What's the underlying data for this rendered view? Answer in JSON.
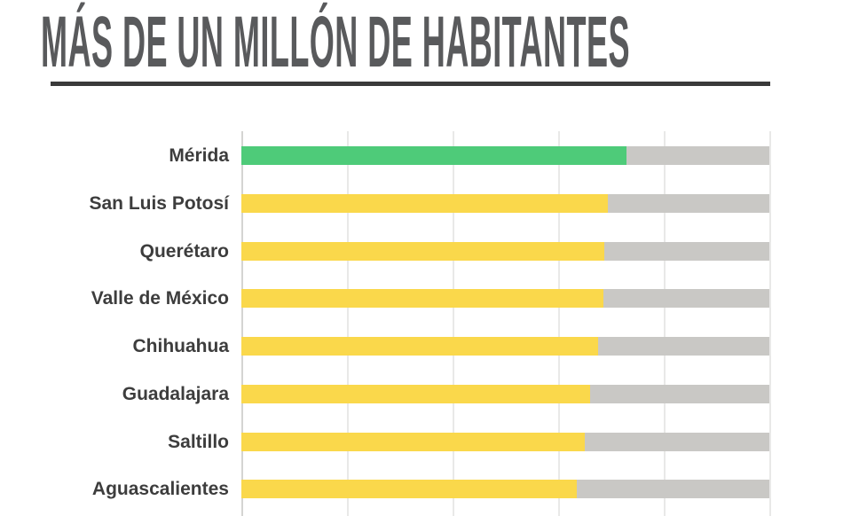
{
  "title": "MÁS DE UN MILLÓN DE HABITANTES",
  "colors": {
    "highlight_bar": "#4ecb79",
    "default_bar": "#fad84b",
    "track": "#c9c8c5",
    "gridline": "#e9e9e8",
    "axis_line": "#d4d4d2",
    "title_text": "#595a5c",
    "label_text": "#3d3d3d",
    "title_rule": "#3a3a3a"
  },
  "chart_data": {
    "type": "bar",
    "orientation": "horizontal",
    "title": "MÁS DE UN MILLÓN DE HABITANTES",
    "categories": [
      "Mérida",
      "San Luis Potosí",
      "Querétaro",
      "Valle de México",
      "Chihuahua",
      "Guadalajara",
      "Saltillo",
      "Aguascalientes"
    ],
    "values": [
      72.9,
      69.4,
      68.7,
      68.6,
      67.6,
      66.1,
      65.0,
      63.5
    ],
    "bar_colors": [
      "#4ecb79",
      "#fad84b",
      "#fad84b",
      "#fad84b",
      "#fad84b",
      "#fad84b",
      "#fad84b",
      "#fad84b"
    ],
    "xlim": [
      0,
      100
    ],
    "x_gridline_count": 6,
    "grid": "vertical-only",
    "track_full_scale": true,
    "value_labels_visible": false,
    "x_axis_labels_visible": false,
    "legend": "none"
  }
}
